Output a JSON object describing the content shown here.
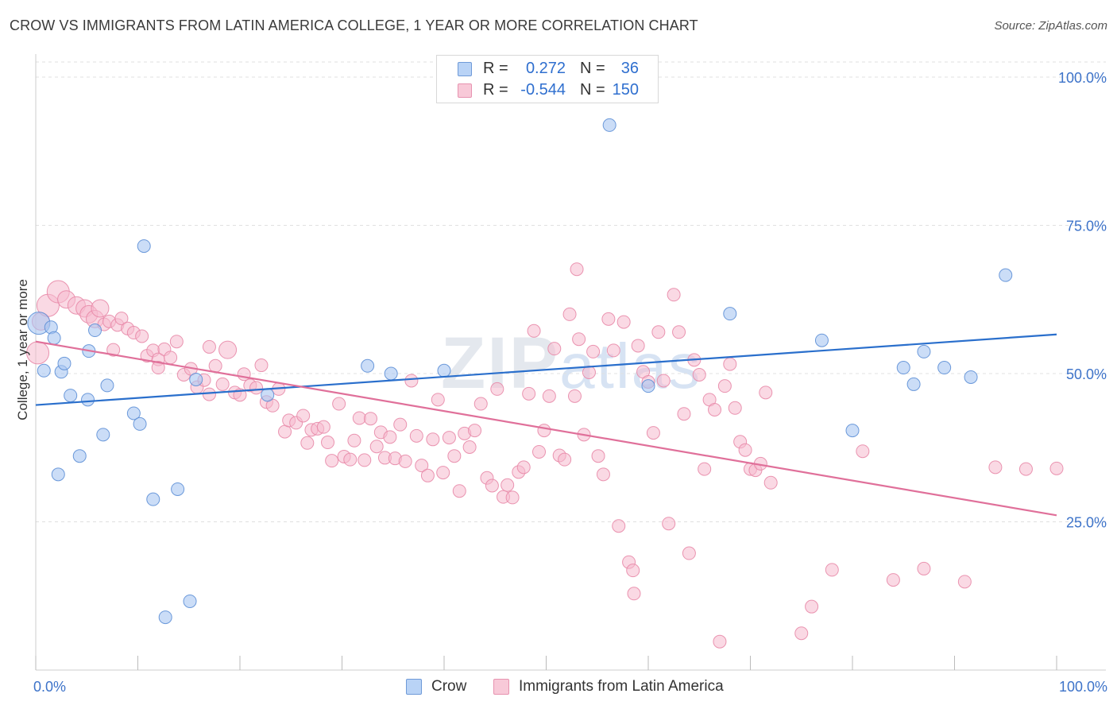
{
  "title": "CROW VS IMMIGRANTS FROM LATIN AMERICA COLLEGE, 1 YEAR OR MORE CORRELATION CHART",
  "source": "Source: ZipAtlas.com",
  "watermark": {
    "zip": "ZIP",
    "atlas": "atlas"
  },
  "legend_top": {
    "rows": [
      {
        "r_label": "R =",
        "r_value": "0.272",
        "n_label": "N =",
        "n_value": "36"
      },
      {
        "r_label": "R =",
        "r_value": "-0.544",
        "n_label": "N =",
        "n_value": "150"
      }
    ]
  },
  "legend_bottom": {
    "items": [
      {
        "label": "Crow"
      },
      {
        "label": "Immigrants from Latin America"
      }
    ]
  },
  "colors": {
    "crow_fill": "#a9c7f2",
    "crow_stroke": "#5d8fd6",
    "crow_line": "#2a6fcc",
    "latin_fill": "#f6b9cd",
    "latin_stroke": "#e88aa8",
    "latin_line": "#e0709a",
    "tick_label": "#3d73c9",
    "grid": "#e0e0e0"
  },
  "chart_data": {
    "type": "scatter",
    "title": "CROW VS IMMIGRANTS FROM LATIN AMERICA COLLEGE, 1 YEAR OR MORE CORRELATION CHART",
    "xlabel": "",
    "ylabel": "College, 1 year or more",
    "xlim": [
      0,
      100
    ],
    "ylim": [
      0,
      100
    ],
    "x_tick_labels": [
      {
        "value": 0,
        "label": "0.0%"
      },
      {
        "value": 100,
        "label": "100.0%"
      }
    ],
    "y_tick_labels": [
      {
        "value": 25,
        "label": "25.0%"
      },
      {
        "value": 50,
        "label": "50.0%"
      },
      {
        "value": 75,
        "label": "75.0%"
      },
      {
        "value": 100,
        "label": "100.0%"
      }
    ],
    "grid": true,
    "legend_position": "top-center",
    "series": [
      {
        "name": "Crow",
        "R": 0.272,
        "N": 36,
        "trend": {
          "x": [
            0,
            100
          ],
          "y": [
            44.7,
            56.6
          ]
        },
        "points": [
          [
            0.3,
            58.5,
            3
          ],
          [
            0.8,
            50.5,
            1
          ],
          [
            1.5,
            57.8,
            1
          ],
          [
            1.8,
            56.0,
            1
          ],
          [
            2.2,
            33.0,
            1
          ],
          [
            2.5,
            50.3,
            1
          ],
          [
            2.8,
            51.7,
            1
          ],
          [
            3.4,
            46.3,
            1
          ],
          [
            4.3,
            36.1,
            1
          ],
          [
            5.1,
            45.6,
            1
          ],
          [
            5.2,
            53.8,
            1
          ],
          [
            5.8,
            57.3,
            1
          ],
          [
            6.6,
            39.7,
            1
          ],
          [
            7.0,
            48.0,
            1
          ],
          [
            9.6,
            43.3,
            1
          ],
          [
            10.2,
            41.5,
            1
          ],
          [
            10.6,
            71.5,
            1
          ],
          [
            11.5,
            28.8,
            1
          ],
          [
            12.7,
            8.9,
            1
          ],
          [
            13.9,
            30.5,
            1
          ],
          [
            15.1,
            11.6,
            1
          ],
          [
            15.7,
            49.0,
            1
          ],
          [
            22.7,
            46.4,
            1
          ],
          [
            32.5,
            51.3,
            1
          ],
          [
            34.8,
            50.0,
            1
          ],
          [
            40.0,
            50.5,
            1
          ],
          [
            56.2,
            91.9,
            1
          ],
          [
            60.0,
            47.9,
            1
          ],
          [
            68.0,
            60.1,
            1
          ],
          [
            77.0,
            55.6,
            1
          ],
          [
            80.0,
            40.4,
            1
          ],
          [
            85.0,
            51.0,
            1
          ],
          [
            86.0,
            48.2,
            1
          ],
          [
            87.0,
            53.7,
            1
          ],
          [
            89.0,
            51.0,
            1
          ],
          [
            91.6,
            49.4,
            1
          ],
          [
            95.0,
            66.6,
            1
          ]
        ]
      },
      {
        "name": "Immigrants from Latin America",
        "R": -0.544,
        "N": 150,
        "trend": {
          "x": [
            0,
            100
          ],
          "y": [
            55.4,
            26.1
          ]
        },
        "points": [
          [
            0.2,
            53.5,
            3
          ],
          [
            0.5,
            58.8,
            2
          ],
          [
            1.2,
            61.5,
            3
          ],
          [
            2.2,
            63.8,
            3
          ],
          [
            3.0,
            62.5,
            2
          ],
          [
            4.0,
            61.5,
            2
          ],
          [
            4.8,
            61.0,
            2
          ],
          [
            5.2,
            60.0,
            2
          ],
          [
            5.8,
            59.2,
            2
          ],
          [
            6.3,
            61.0,
            2
          ],
          [
            6.7,
            58.3,
            1
          ],
          [
            7.2,
            58.8,
            1
          ],
          [
            7.6,
            54.0,
            1
          ],
          [
            8.0,
            58.2,
            1
          ],
          [
            8.4,
            59.3,
            1
          ],
          [
            9.0,
            57.6,
            1
          ],
          [
            9.6,
            56.9,
            1
          ],
          [
            10.4,
            56.3,
            1
          ],
          [
            10.9,
            53.0,
            1
          ],
          [
            11.5,
            53.9,
            1
          ],
          [
            12.0,
            52.4,
            1
          ],
          [
            12.6,
            54.1,
            1
          ],
          [
            13.2,
            52.7,
            1
          ],
          [
            13.8,
            55.4,
            1
          ],
          [
            14.5,
            49.8,
            1
          ],
          [
            15.2,
            50.8,
            1
          ],
          [
            15.8,
            47.7,
            1
          ],
          [
            16.5,
            48.9,
            1
          ],
          [
            17.0,
            46.5,
            1
          ],
          [
            17.6,
            51.3,
            1
          ],
          [
            18.3,
            48.2,
            1
          ],
          [
            18.8,
            54.0,
            2
          ],
          [
            19.5,
            46.8,
            1
          ],
          [
            20.0,
            46.4,
            1
          ],
          [
            20.4,
            49.9,
            1
          ],
          [
            21.0,
            48.0,
            1
          ],
          [
            21.6,
            47.6,
            1
          ],
          [
            22.1,
            51.4,
            1
          ],
          [
            22.6,
            45.2,
            1
          ],
          [
            23.2,
            44.6,
            1
          ],
          [
            23.8,
            47.4,
            1
          ],
          [
            24.4,
            40.2,
            1
          ],
          [
            24.8,
            42.1,
            1
          ],
          [
            25.5,
            41.7,
            1
          ],
          [
            26.2,
            42.9,
            1
          ],
          [
            26.6,
            38.3,
            1
          ],
          [
            27.0,
            40.5,
            1
          ],
          [
            27.6,
            40.7,
            1
          ],
          [
            28.2,
            41.0,
            1
          ],
          [
            28.6,
            38.4,
            1
          ],
          [
            29.0,
            35.3,
            1
          ],
          [
            29.7,
            44.9,
            1
          ],
          [
            30.2,
            36.0,
            1
          ],
          [
            30.8,
            35.5,
            1
          ],
          [
            31.2,
            38.7,
            1
          ],
          [
            31.7,
            42.5,
            1
          ],
          [
            32.2,
            35.4,
            1
          ],
          [
            32.8,
            42.4,
            1
          ],
          [
            33.4,
            37.7,
            1
          ],
          [
            33.8,
            40.1,
            1
          ],
          [
            34.2,
            35.8,
            1
          ],
          [
            34.7,
            39.3,
            1
          ],
          [
            35.2,
            35.7,
            1
          ],
          [
            35.7,
            41.4,
            1
          ],
          [
            36.2,
            35.2,
            1
          ],
          [
            36.8,
            48.8,
            1
          ],
          [
            37.3,
            39.5,
            1
          ],
          [
            37.8,
            34.5,
            1
          ],
          [
            38.4,
            32.8,
            1
          ],
          [
            38.9,
            38.9,
            1
          ],
          [
            39.4,
            45.6,
            1
          ],
          [
            39.9,
            33.3,
            1
          ],
          [
            40.5,
            39.2,
            1
          ],
          [
            41.0,
            36.1,
            1
          ],
          [
            41.5,
            30.2,
            1
          ],
          [
            42.0,
            39.9,
            1
          ],
          [
            42.5,
            37.6,
            1
          ],
          [
            43.0,
            40.4,
            1
          ],
          [
            43.6,
            44.9,
            1
          ],
          [
            44.2,
            32.4,
            1
          ],
          [
            44.7,
            31.1,
            1
          ],
          [
            45.2,
            47.4,
            1
          ],
          [
            45.8,
            29.2,
            1
          ],
          [
            46.2,
            31.2,
            1
          ],
          [
            46.7,
            29.1,
            1
          ],
          [
            47.3,
            33.4,
            1
          ],
          [
            47.8,
            34.2,
            1
          ],
          [
            48.3,
            46.6,
            1
          ],
          [
            48.8,
            57.2,
            1
          ],
          [
            49.3,
            36.8,
            1
          ],
          [
            49.8,
            40.4,
            1
          ],
          [
            50.3,
            46.2,
            1
          ],
          [
            50.8,
            54.2,
            1
          ],
          [
            51.3,
            36.2,
            1
          ],
          [
            51.8,
            35.5,
            1
          ],
          [
            52.3,
            60.0,
            1
          ],
          [
            52.8,
            46.2,
            1
          ],
          [
            53.2,
            55.8,
            1
          ],
          [
            53.7,
            39.7,
            1
          ],
          [
            54.2,
            50.2,
            1
          ],
          [
            54.6,
            53.7,
            1
          ],
          [
            55.1,
            36.1,
            1
          ],
          [
            55.6,
            33.0,
            1
          ],
          [
            56.1,
            59.2,
            1
          ],
          [
            56.6,
            53.9,
            1
          ],
          [
            57.1,
            24.3,
            1
          ],
          [
            57.6,
            58.7,
            1
          ],
          [
            58.1,
            18.2,
            1
          ],
          [
            58.6,
            12.9,
            1
          ],
          [
            59.0,
            54.7,
            1
          ],
          [
            59.5,
            50.3,
            1
          ],
          [
            60.0,
            48.6,
            1
          ],
          [
            60.5,
            40.0,
            1
          ],
          [
            61.0,
            57.0,
            1
          ],
          [
            61.5,
            48.8,
            1
          ],
          [
            62.0,
            24.7,
            1
          ],
          [
            62.5,
            63.3,
            1
          ],
          [
            63.0,
            57.0,
            1
          ],
          [
            63.5,
            43.2,
            1
          ],
          [
            64.0,
            19.7,
            1
          ],
          [
            64.5,
            52.3,
            1
          ],
          [
            65.0,
            49.8,
            1
          ],
          [
            65.5,
            33.9,
            1
          ],
          [
            66.0,
            45.6,
            1
          ],
          [
            66.5,
            43.9,
            1
          ],
          [
            67.0,
            4.8,
            1
          ],
          [
            67.5,
            47.9,
            1
          ],
          [
            68.0,
            51.6,
            1
          ],
          [
            68.5,
            44.2,
            1
          ],
          [
            69.0,
            38.5,
            1
          ],
          [
            69.5,
            37.1,
            1
          ],
          [
            70.0,
            33.9,
            1
          ],
          [
            70.5,
            33.7,
            1
          ],
          [
            71.0,
            34.8,
            1
          ],
          [
            71.5,
            46.8,
            1
          ],
          [
            72.0,
            31.6,
            1
          ],
          [
            75.0,
            6.2,
            1
          ],
          [
            76.0,
            10.7,
            1
          ],
          [
            78.0,
            16.9,
            1
          ],
          [
            81.0,
            36.9,
            1
          ],
          [
            84.0,
            15.2,
            1
          ],
          [
            87.0,
            17.1,
            1
          ],
          [
            91.0,
            14.9,
            1
          ],
          [
            94.0,
            34.2,
            1
          ],
          [
            97.0,
            33.9,
            1
          ],
          [
            100.0,
            34.0,
            1
          ],
          [
            53.0,
            67.6,
            1
          ],
          [
            17.0,
            54.5,
            1
          ],
          [
            12.0,
            51.0,
            1
          ],
          [
            58.5,
            16.8,
            1
          ]
        ]
      }
    ]
  }
}
